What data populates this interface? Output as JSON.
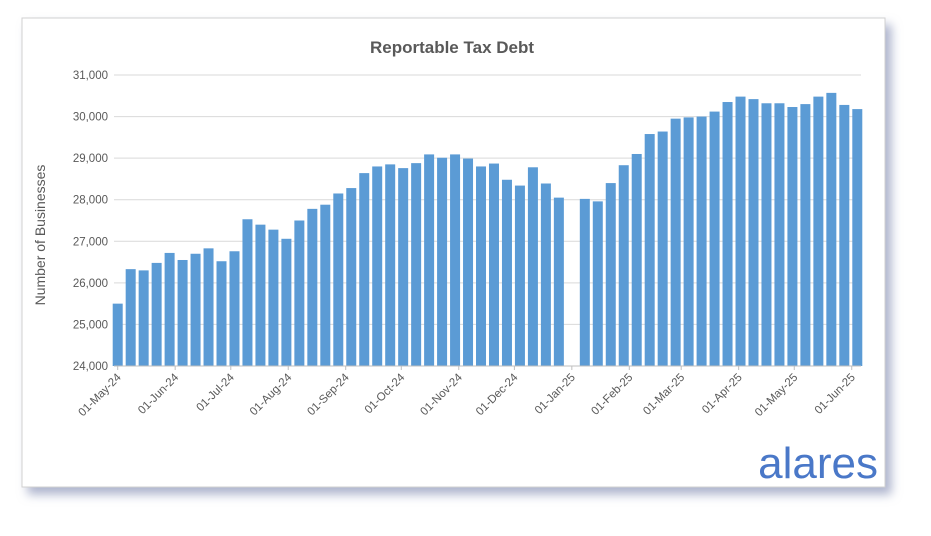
{
  "chart_data": {
    "type": "bar",
    "title": "Reportable Tax Debt",
    "y_label": "Number of Businesses",
    "color": "#5b9bd5",
    "grid": true,
    "x": [
      "2024-05-01",
      "2024-05-08",
      "2024-05-15",
      "2024-05-22",
      "2024-05-29",
      "2024-06-05",
      "2024-06-12",
      "2024-06-19",
      "2024-06-26",
      "2024-07-03",
      "2024-07-10",
      "2024-07-17",
      "2024-07-24",
      "2024-07-31",
      "2024-08-07",
      "2024-08-14",
      "2024-08-21",
      "2024-08-28",
      "2024-09-04",
      "2024-09-11",
      "2024-09-18",
      "2024-09-25",
      "2024-10-02",
      "2024-10-09",
      "2024-10-16",
      "2024-10-23",
      "2024-10-30",
      "2024-11-06",
      "2024-11-13",
      "2024-11-20",
      "2024-11-27",
      "2024-12-04",
      "2024-12-11",
      "2024-12-18",
      "2024-12-25",
      "2025-01-01",
      "2025-01-08",
      "2025-01-15",
      "2025-01-22",
      "2025-01-29",
      "2025-02-05",
      "2025-02-12",
      "2025-02-19",
      "2025-02-26",
      "2025-03-05",
      "2025-03-12",
      "2025-03-19",
      "2025-03-26",
      "2025-04-02",
      "2025-04-09",
      "2025-04-16",
      "2025-04-23",
      "2025-04-30",
      "2025-05-07",
      "2025-05-14",
      "2025-05-21",
      "2025-05-28",
      "2025-06-04"
    ],
    "values": [
      25500,
      26330,
      26300,
      26480,
      26720,
      26550,
      26700,
      26830,
      26520,
      26760,
      27530,
      27400,
      27280,
      27060,
      27500,
      27780,
      27880,
      28150,
      28280,
      28640,
      28800,
      28850,
      28760,
      28880,
      29090,
      29010,
      29090,
      28990,
      28800,
      28870,
      28480,
      28340,
      28780,
      28390,
      28050,
      null,
      28020,
      27960,
      28400,
      28830,
      29100,
      29580,
      29640,
      29950,
      29980,
      30000,
      30120,
      30350,
      30480,
      30420,
      30320,
      30320,
      30230,
      30300,
      30480,
      30570,
      30280,
      30180
    ],
    "xlim": [
      "2024-04-29",
      "2025-06-06"
    ],
    "xticks": [
      {
        "value": "2024-05-01",
        "label": "01-May-24"
      },
      {
        "value": "2024-06-01",
        "label": "01-Jun-24"
      },
      {
        "value": "2024-07-01",
        "label": "01-Jul-24"
      },
      {
        "value": "2024-08-01",
        "label": "01-Aug-24"
      },
      {
        "value": "2024-09-01",
        "label": "01-Sep-24"
      },
      {
        "value": "2024-10-01",
        "label": "01-Oct-24"
      },
      {
        "value": "2024-11-01",
        "label": "01-Nov-24"
      },
      {
        "value": "2024-12-01",
        "label": "01-Dec-24"
      },
      {
        "value": "2025-01-01",
        "label": "01-Jan-25"
      },
      {
        "value": "2025-02-01",
        "label": "01-Feb-25"
      },
      {
        "value": "2025-03-01",
        "label": "01-Mar-25"
      },
      {
        "value": "2025-04-01",
        "label": "01-Apr-25"
      },
      {
        "value": "2025-05-01",
        "label": "01-May-25"
      },
      {
        "value": "2025-06-01",
        "label": "01-Jun-25"
      }
    ],
    "ylim": [
      24000,
      31000
    ],
    "yticks": [
      {
        "value": 24000,
        "label": "24,000"
      },
      {
        "value": 25000,
        "label": "25,000"
      },
      {
        "value": 26000,
        "label": "26,000"
      },
      {
        "value": 27000,
        "label": "27,000"
      },
      {
        "value": 28000,
        "label": "28,000"
      },
      {
        "value": 29000,
        "label": "29,000"
      },
      {
        "value": 30000,
        "label": "30,000"
      },
      {
        "value": 31000,
        "label": "31,000"
      }
    ]
  },
  "logo": "alares"
}
